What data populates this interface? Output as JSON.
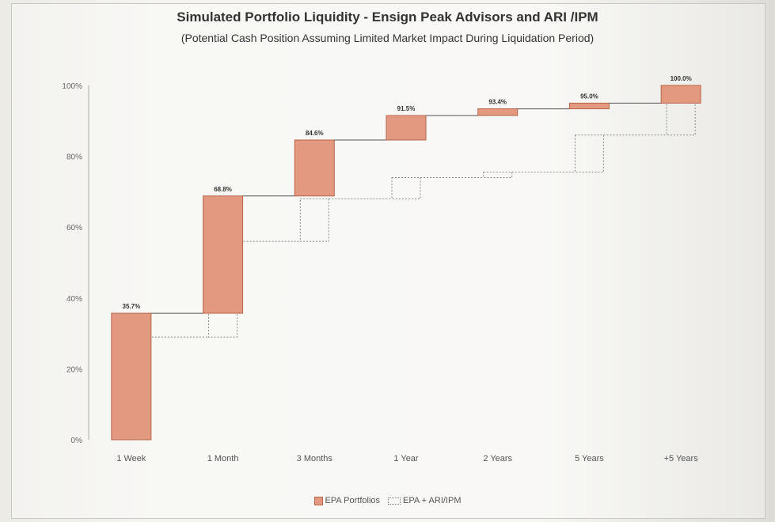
{
  "title": "Simulated Portfolio Liquidity - Ensign Peak Advisors and ARI /IPM",
  "subtitle": "(Potential Cash Position Assuming Limited Market Impact During Liquidation Period)",
  "legend": {
    "epa_label": "EPA Portfolios",
    "epa_ari_label": "EPA + ARI/IPM"
  },
  "colors": {
    "epa_fill": "#e2997f",
    "epa_stroke": "#b8654a",
    "ari_stroke": "#888888",
    "connector": "#555555"
  },
  "chart_data": {
    "type": "bar",
    "subtype": "waterfall-cumulative",
    "title": "Simulated Portfolio Liquidity - Ensign Peak Advisors and ARI /IPM",
    "subtitle": "(Potential Cash Position Assuming Limited Market Impact During Liquidation Period)",
    "xlabel": "",
    "ylabel": "",
    "categories": [
      "1 Week",
      "1 Month",
      "3 Months",
      "1 Year",
      "2 Years",
      "5 Years",
      "+5 Years"
    ],
    "ylim": [
      0,
      100
    ],
    "yticks": [
      0,
      20,
      40,
      60,
      80,
      100
    ],
    "ytick_labels": [
      "0%",
      "20%",
      "40%",
      "60%",
      "80%",
      "100%"
    ],
    "series": [
      {
        "name": "EPA Portfolios",
        "style": "solid-fill",
        "cumulative": [
          35.7,
          68.8,
          84.6,
          91.5,
          93.4,
          95.0,
          100.0
        ],
        "data_labels": [
          "35.7%",
          "68.8%",
          "84.6%",
          "91.5%",
          "93.4%",
          "95.0%",
          "100.0%"
        ]
      },
      {
        "name": "EPA + ARI/IPM",
        "style": "dotted-outline",
        "cumulative": [
          29.0,
          56.0,
          68.0,
          74.0,
          75.5,
          86.0,
          100.0
        ]
      }
    ],
    "grid": false,
    "legend_position": "bottom-center"
  }
}
